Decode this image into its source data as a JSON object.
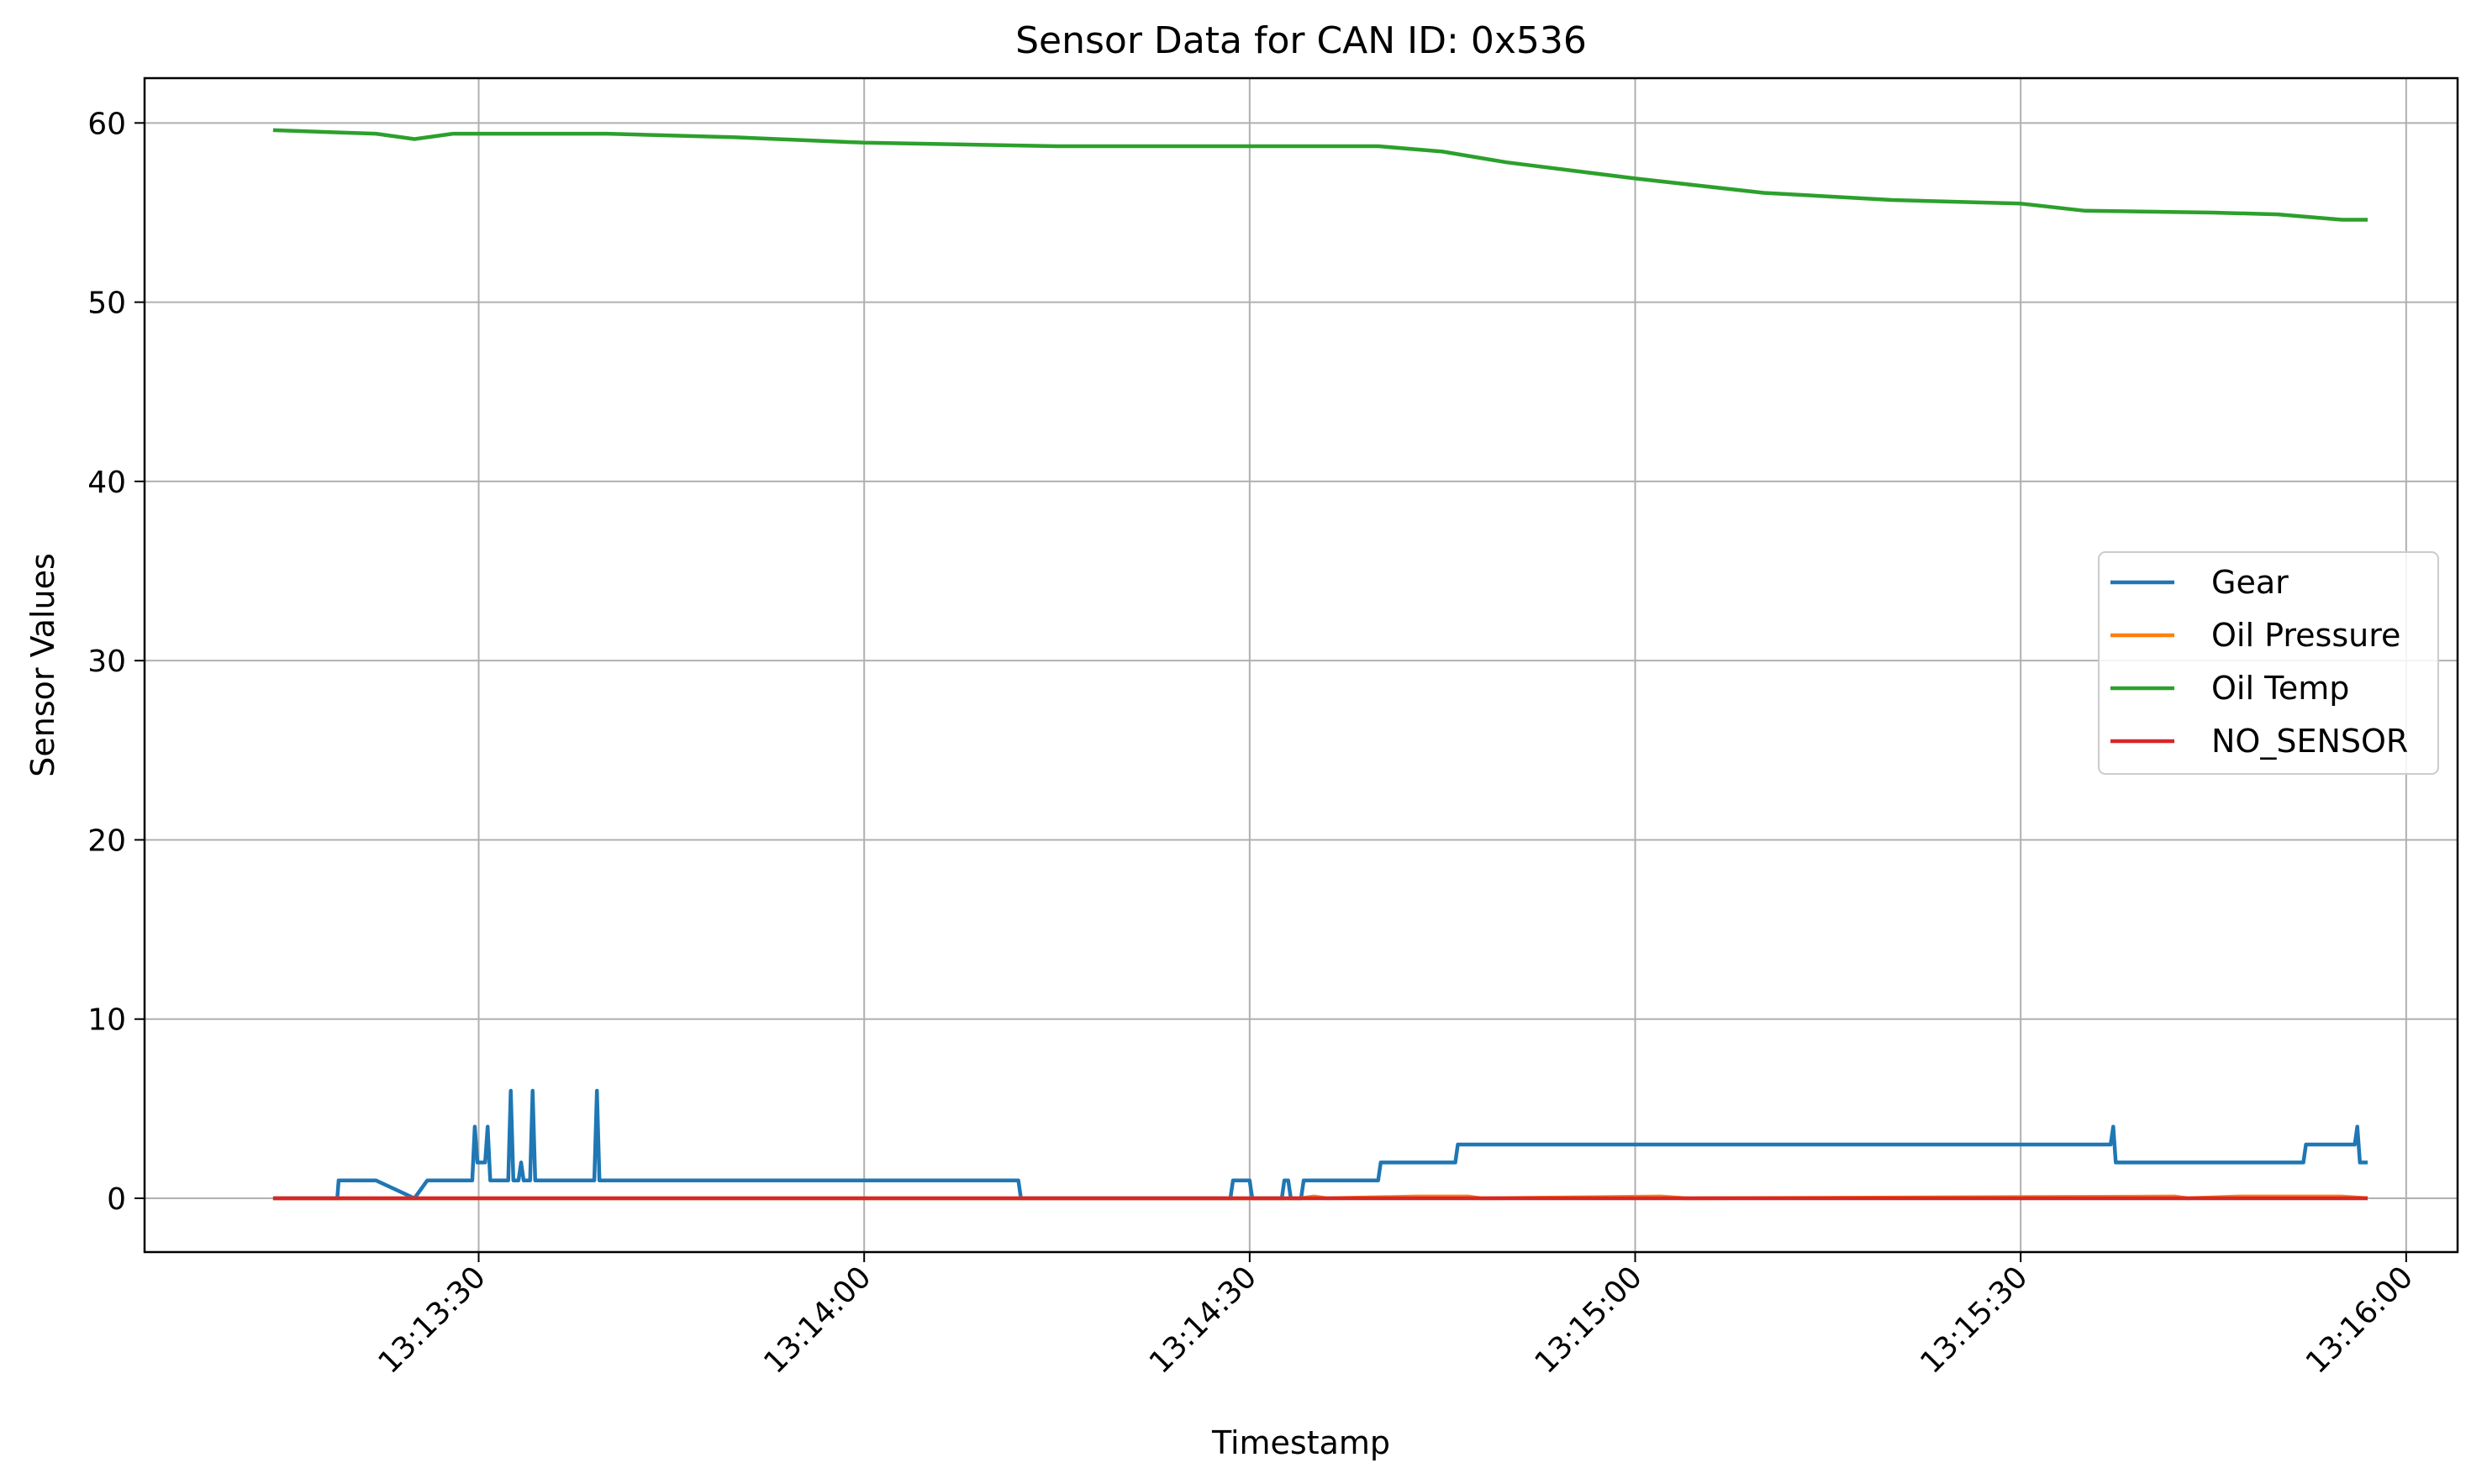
{
  "chart_data": {
    "type": "line",
    "title": "Sensor Data for CAN ID: 0x536",
    "xlabel": "Timestamp",
    "ylabel": "Sensor Values",
    "xlim": [
      "13:13:04",
      "13:16:04"
    ],
    "ylim": [
      -3,
      62.5
    ],
    "x_ticks": [
      "13:13:30",
      "13:14:00",
      "13:14:30",
      "13:15:00",
      "13:15:30",
      "13:16:00"
    ],
    "y_ticks": [
      0,
      10,
      20,
      30,
      40,
      50,
      60
    ],
    "grid": true,
    "legend_position": "right",
    "series": [
      {
        "name": "Gear",
        "color": "#1f77b4",
        "points": [
          [
            "13:13:14",
            0
          ],
          [
            "13:13:19",
            0
          ],
          [
            "13:13:19.1",
            1
          ],
          [
            "13:13:22",
            1
          ],
          [
            "13:13:25",
            0
          ],
          [
            "13:13:26",
            1
          ],
          [
            "13:13:29.5",
            1
          ],
          [
            "13:13:29.7",
            4
          ],
          [
            "13:13:29.9",
            2
          ],
          [
            "13:13:30.5",
            2
          ],
          [
            "13:13:30.7",
            4
          ],
          [
            "13:13:30.9",
            1
          ],
          [
            "13:13:32.3",
            1
          ],
          [
            "13:13:32.5",
            6
          ],
          [
            "13:13:32.7",
            1
          ],
          [
            "13:13:33.1",
            1
          ],
          [
            "13:13:33.3",
            2
          ],
          [
            "13:13:33.5",
            1
          ],
          [
            "13:13:34",
            1
          ],
          [
            "13:13:34.2",
            6
          ],
          [
            "13:13:34.4",
            1
          ],
          [
            "13:13:39",
            1
          ],
          [
            "13:13:39.2",
            6
          ],
          [
            "13:13:39.4",
            1
          ],
          [
            "13:14:12",
            1
          ],
          [
            "13:14:12.2",
            0
          ],
          [
            "13:14:28.5",
            0
          ],
          [
            "13:14:28.7",
            1
          ],
          [
            "13:14:30",
            1
          ],
          [
            "13:14:30.2",
            0
          ],
          [
            "13:14:32.5",
            0
          ],
          [
            "13:14:32.7",
            1
          ],
          [
            "13:14:33",
            1
          ],
          [
            "13:14:33.2",
            0
          ],
          [
            "13:14:34",
            0
          ],
          [
            "13:14:34.2",
            1
          ],
          [
            "13:14:40",
            1
          ],
          [
            "13:14:40.2",
            2
          ],
          [
            "13:14:46",
            2
          ],
          [
            "13:14:46.2",
            3
          ],
          [
            "13:15:37",
            3
          ],
          [
            "13:15:37.2",
            4
          ],
          [
            "13:15:37.4",
            2
          ],
          [
            "13:15:52",
            2
          ],
          [
            "13:15:52.2",
            3
          ],
          [
            "13:15:56",
            3
          ],
          [
            "13:15:56.2",
            4
          ],
          [
            "13:15:56.4",
            2
          ],
          [
            "13:15:57",
            2
          ]
        ]
      },
      {
        "name": "Oil Pressure",
        "color": "#ff7f0e",
        "points": [
          [
            "13:13:14",
            0
          ],
          [
            "13:14:34",
            0
          ],
          [
            "13:14:35",
            0.1
          ],
          [
            "13:14:36",
            0
          ],
          [
            "13:14:43",
            0.1
          ],
          [
            "13:14:47",
            0.1
          ],
          [
            "13:14:48",
            0
          ],
          [
            "13:15:02",
            0.1
          ],
          [
            "13:15:04",
            0
          ],
          [
            "13:15:42",
            0.1
          ],
          [
            "13:15:43",
            0
          ],
          [
            "13:15:47",
            0.1
          ],
          [
            "13:15:55",
            0.1
          ],
          [
            "13:15:57",
            0
          ]
        ]
      },
      {
        "name": "Oil Temp",
        "color": "#2ca02c",
        "points": [
          [
            "13:13:14",
            59.6
          ],
          [
            "13:13:22",
            59.4
          ],
          [
            "13:13:25",
            59.1
          ],
          [
            "13:13:28",
            59.4
          ],
          [
            "13:13:40",
            59.4
          ],
          [
            "13:13:50",
            59.2
          ],
          [
            "13:14:00",
            58.9
          ],
          [
            "13:14:15",
            58.7
          ],
          [
            "13:14:40",
            58.7
          ],
          [
            "13:14:45",
            58.4
          ],
          [
            "13:14:50",
            57.8
          ],
          [
            "13:15:00",
            56.9
          ],
          [
            "13:15:10",
            56.1
          ],
          [
            "13:15:20",
            55.7
          ],
          [
            "13:15:30",
            55.5
          ],
          [
            "13:15:35",
            55.1
          ],
          [
            "13:15:45",
            55.0
          ],
          [
            "13:15:50",
            54.9
          ],
          [
            "13:15:55",
            54.6
          ],
          [
            "13:15:57",
            54.6
          ]
        ]
      },
      {
        "name": "NO_SENSOR",
        "color": "#d62728",
        "points": [
          [
            "13:13:14",
            0
          ],
          [
            "13:15:57",
            0
          ]
        ]
      }
    ]
  }
}
